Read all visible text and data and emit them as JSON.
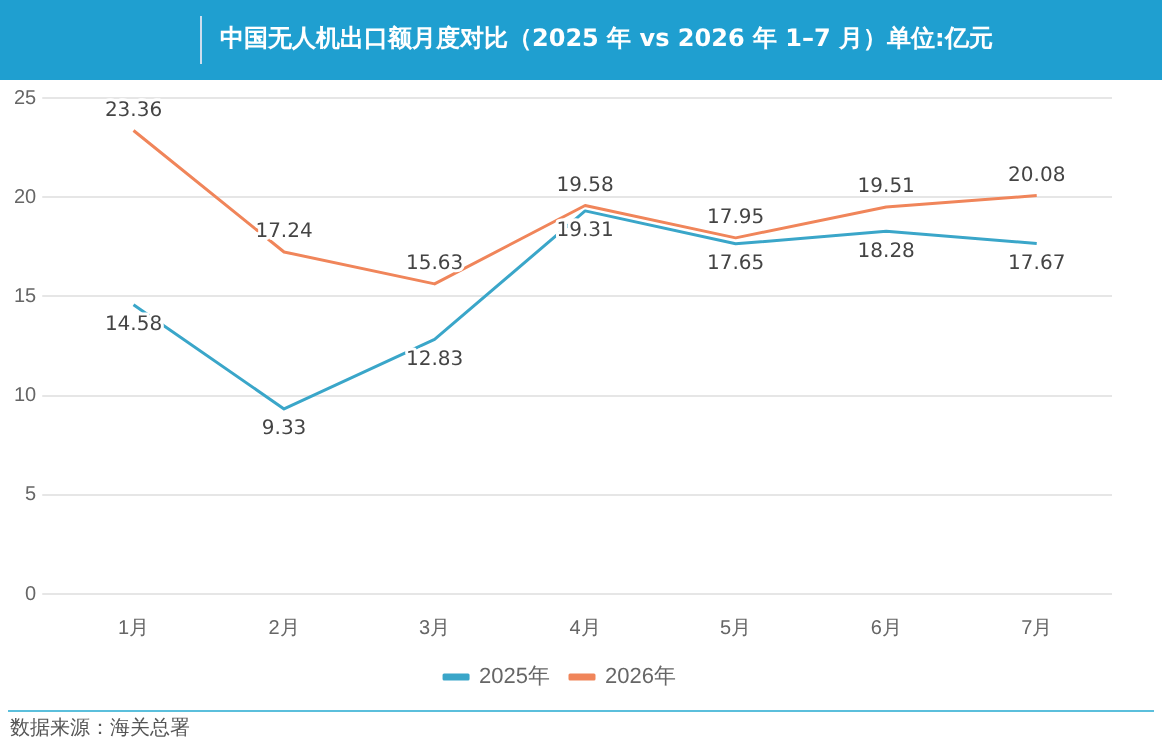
{
  "chart_data": {
    "type": "line",
    "title": "中国无人机出口额月度对比（2025 年 vs 2026 年 1–7 月）单位:亿元",
    "categories": [
      "1月",
      "2月",
      "3月",
      "4月",
      "5月",
      "6月",
      "7月"
    ],
    "series": [
      {
        "name": "2025年",
        "color": "#3aa6c9",
        "values": [
          14.58,
          9.33,
          12.83,
          19.31,
          17.65,
          18.28,
          17.67
        ]
      },
      {
        "name": "2026年",
        "color": "#f0855a",
        "values": [
          23.36,
          17.24,
          15.63,
          19.58,
          17.95,
          19.51,
          20.08
        ]
      }
    ],
    "ylim": [
      0,
      25
    ],
    "yticks": [
      0,
      5,
      10,
      15,
      20,
      25
    ],
    "grid": "y",
    "legend": "bottom",
    "marker": "none",
    "line_style": "solid",
    "data_labels": true,
    "annotations": [
      "数据来源：海关总署"
    ]
  }
}
